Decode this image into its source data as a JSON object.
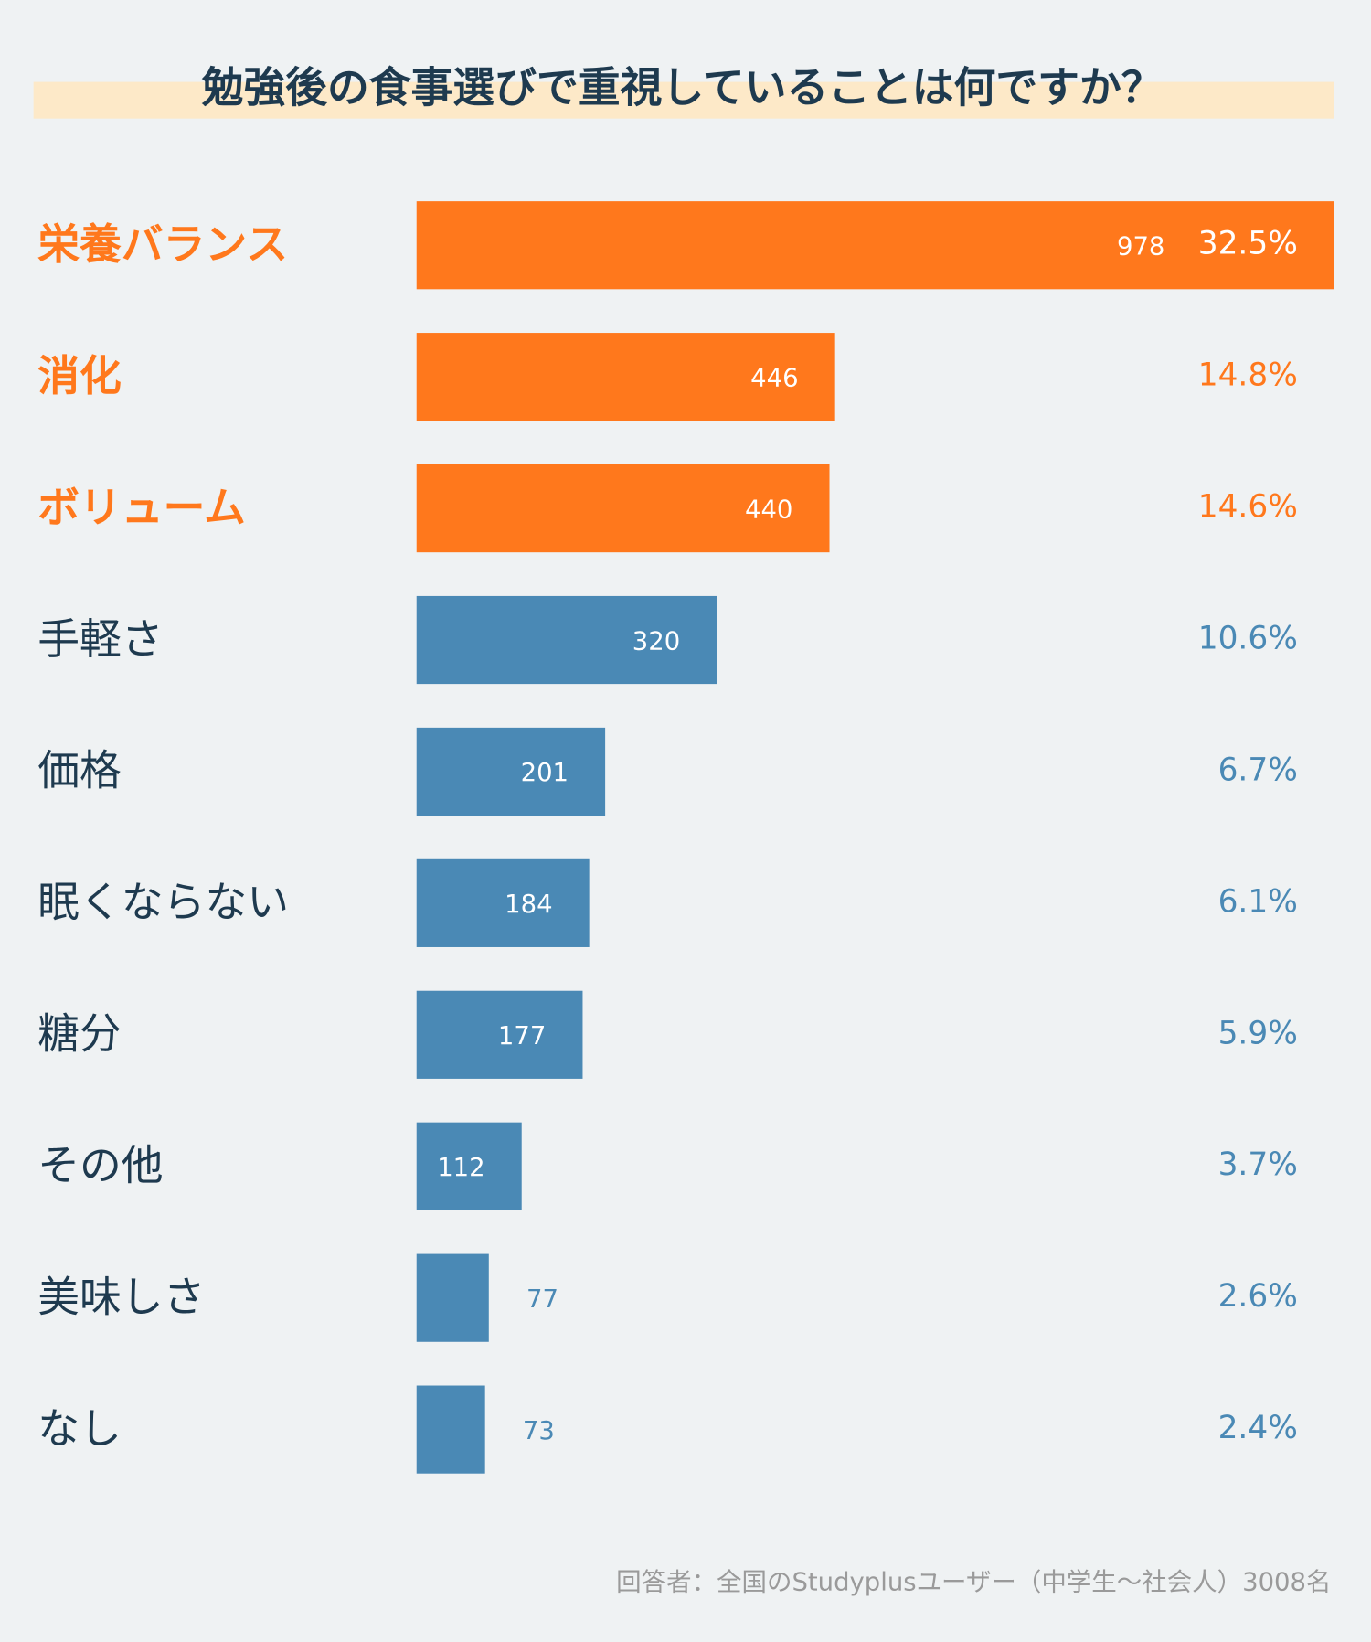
{
  "chart_data": {
    "type": "bar",
    "title": "勉強後の食事選びで重視していることは何ですか？",
    "categories": [
      "栄養バランス",
      "消化",
      "ボリューム",
      "手軽さ",
      "価格",
      "眠くならない",
      "糖分",
      "その他",
      "美味しさ",
      "なし"
    ],
    "values": [
      978,
      446,
      440,
      320,
      201,
      184,
      177,
      112,
      77,
      73
    ],
    "percent_labels": [
      "32.5%",
      "14.8%",
      "14.6%",
      "10.6%",
      "6.7%",
      "6.1%",
      "5.9%",
      "3.7%",
      "2.6%",
      "2.4%"
    ],
    "colors": [
      "#ff781c",
      "#ff781c",
      "#ff781c",
      "#4a89b5",
      "#4a89b5",
      "#4a89b5",
      "#4a89b5",
      "#4a89b5",
      "#4a89b5",
      "#4a89b5"
    ],
    "footnote": "回答者：全国のStudyplusユーザー（中学生〜社会人）3008名"
  }
}
